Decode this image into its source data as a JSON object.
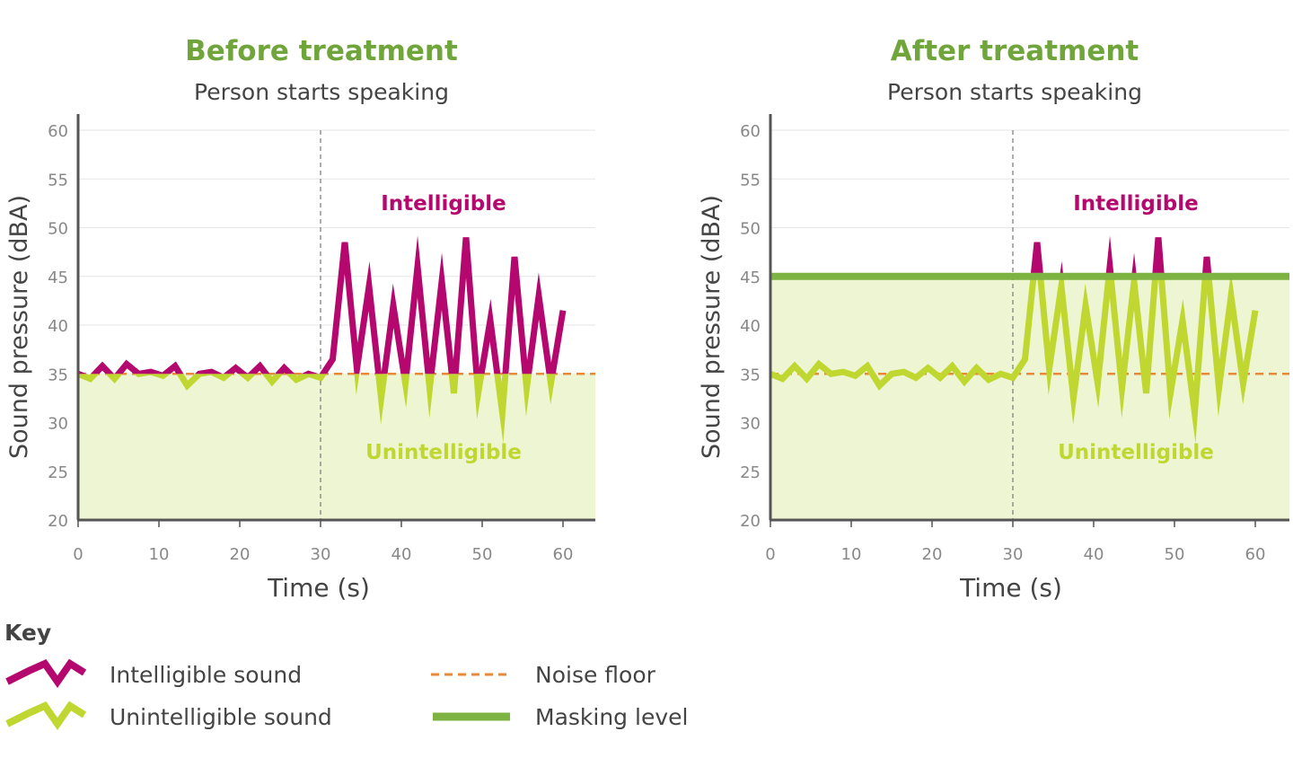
{
  "colors": {
    "intelligible": "#b5086f",
    "unintelligible": "#bfd730",
    "title": "#6fa53a",
    "noise_floor": "#e8893a",
    "masking": "#7cb342",
    "fill": "#eef5d3",
    "axis": "#555555",
    "grid": "#e6e6e6"
  },
  "chart_data": [
    {
      "type": "line",
      "title": "Before treatment",
      "subtitle": "Person starts speaking",
      "xlabel": "Time (s)",
      "ylabel": "Sound pressure (dBA)",
      "xlim": [
        0,
        60
      ],
      "ylim": [
        20,
        60
      ],
      "xticks": [
        "0",
        "10",
        "20",
        "30",
        "40",
        "50",
        "60"
      ],
      "yticks": [
        "20",
        "25",
        "30",
        "35",
        "40",
        "45",
        "50",
        "55",
        "60"
      ],
      "grid": true,
      "noise_floor": 35,
      "speech_start": 30,
      "region_labels": {
        "above": "Intelligible",
        "below": "Unintelligible"
      },
      "x": [
        0,
        1.5,
        3,
        4.5,
        6,
        7.5,
        9,
        10.5,
        12,
        13.5,
        15,
        16.5,
        18,
        19.5,
        21,
        22.5,
        24,
        25.5,
        27,
        28.5,
        30,
        31.5,
        33,
        34.5,
        36,
        37.5,
        39,
        40.5,
        42,
        43.5,
        45,
        46.5,
        48,
        49.5,
        51,
        52.5,
        54,
        55.5,
        57,
        58.5,
        60
      ],
      "series": [
        {
          "values": [
            35,
            34.5,
            35.8,
            34.5,
            36,
            35,
            35.2,
            34.8,
            35.8,
            33.8,
            35,
            35.2,
            34.6,
            35.6,
            34.6,
            35.8,
            34.2,
            35.6,
            34.4,
            35,
            34.6,
            36.5,
            48.5,
            35.5,
            44,
            32.5,
            42,
            34,
            46,
            33.5,
            44.5,
            33,
            49,
            33,
            40.5,
            31,
            47,
            33.5,
            43,
            34,
            41.5
          ]
        }
      ]
    },
    {
      "type": "line",
      "title": "After treatment",
      "subtitle": "Person starts speaking",
      "xlabel": "Time (s)",
      "ylabel": "Sound pressure (dBA)",
      "xlim": [
        0,
        60
      ],
      "ylim": [
        20,
        60
      ],
      "xticks": [
        "0",
        "10",
        "20",
        "30",
        "40",
        "50",
        "60"
      ],
      "yticks": [
        "20",
        "25",
        "30",
        "35",
        "40",
        "45",
        "50",
        "55",
        "60"
      ],
      "grid": true,
      "noise_floor": 35,
      "masking_level": 45,
      "speech_start": 30,
      "region_labels": {
        "above": "Intelligible",
        "below": "Unintelligible"
      },
      "x": [
        0,
        1.5,
        3,
        4.5,
        6,
        7.5,
        9,
        10.5,
        12,
        13.5,
        15,
        16.5,
        18,
        19.5,
        21,
        22.5,
        24,
        25.5,
        27,
        28.5,
        30,
        31.5,
        33,
        34.5,
        36,
        37.5,
        39,
        40.5,
        42,
        43.5,
        45,
        46.5,
        48,
        49.5,
        51,
        52.5,
        54,
        55.5,
        57,
        58.5,
        60
      ],
      "series": [
        {
          "values": [
            35,
            34.5,
            35.8,
            34.5,
            36,
            35,
            35.2,
            34.8,
            35.8,
            33.8,
            35,
            35.2,
            34.6,
            35.6,
            34.6,
            35.8,
            34.2,
            35.6,
            34.4,
            35,
            34.6,
            36.5,
            48.5,
            35.5,
            44,
            32.5,
            42,
            34,
            46,
            33.5,
            44.5,
            33,
            49,
            33,
            40.5,
            31,
            47,
            33.5,
            43,
            34,
            41.5
          ]
        }
      ]
    }
  ],
  "key": {
    "title": "Key",
    "items": [
      {
        "label": "Intelligible sound",
        "symbol": "zigzag",
        "color": "#b5086f"
      },
      {
        "label": "Unintelligible sound",
        "symbol": "zigzag",
        "color": "#bfd730"
      },
      {
        "label": "Noise floor",
        "symbol": "dashed-line",
        "color": "#e8893a"
      },
      {
        "label": "Masking level",
        "symbol": "solid-line",
        "color": "#7cb342"
      }
    ]
  }
}
